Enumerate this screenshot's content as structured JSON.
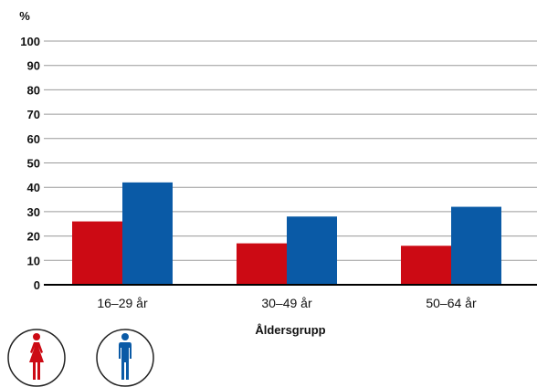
{
  "chart_data": {
    "type": "bar",
    "ylabel": "%",
    "xlabel": "Åldersgrupp",
    "categories": [
      "16–29 år",
      "30–49 år",
      "50–64 år"
    ],
    "series": [
      {
        "legend_icon": "woman-icon",
        "color": "#cc0a14",
        "values": [
          26,
          17,
          16
        ]
      },
      {
        "legend_icon": "man-icon",
        "color": "#0a5aa6",
        "values": [
          42,
          28,
          32
        ]
      }
    ],
    "ylim": [
      0,
      100
    ],
    "yticks": [
      0,
      10,
      20,
      30,
      40,
      50,
      60,
      70,
      80,
      90,
      100
    ],
    "grid": true,
    "legend": "bottom-left"
  }
}
